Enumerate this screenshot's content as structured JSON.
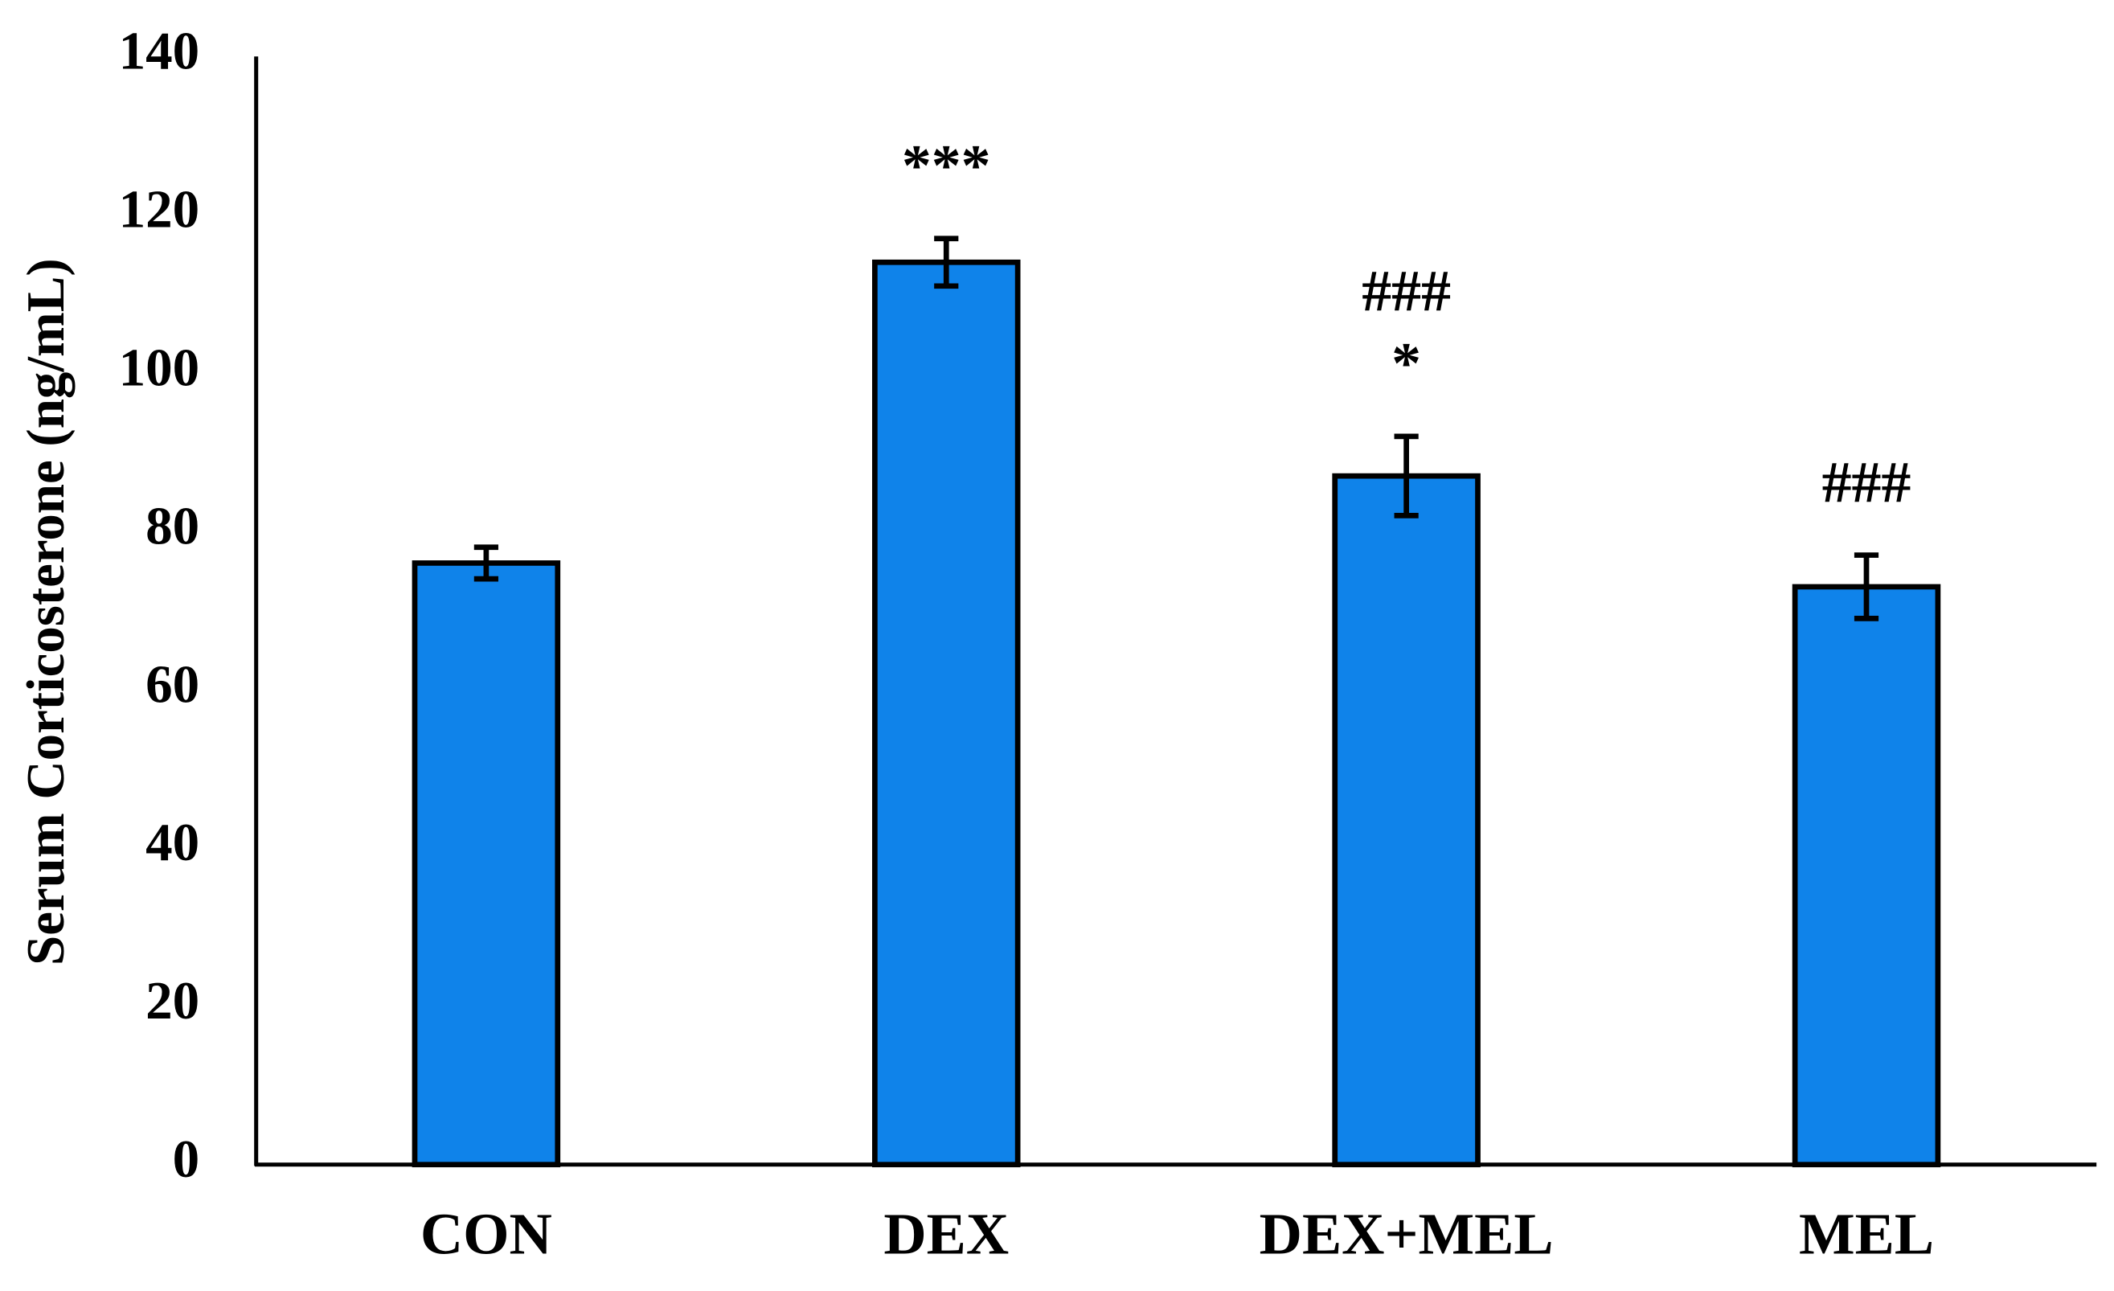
{
  "chart_data": {
    "type": "bar",
    "y_label": "Serum Corticosterone (ng/mL)",
    "categories": [
      "CON",
      "DEX",
      "DEX+MEL",
      "MEL"
    ],
    "values": [
      76,
      114,
      87,
      73
    ],
    "errors": [
      2,
      3,
      5,
      4
    ],
    "color": "#0f83ea",
    "ylim": [
      0,
      140
    ],
    "yticks": [
      0,
      20,
      40,
      60,
      80,
      100,
      120,
      140
    ],
    "grid": false,
    "annotations": [
      {
        "category": "DEX",
        "lines": [
          "***"
        ]
      },
      {
        "category": "DEX+MEL",
        "lines": [
          "###",
          "*"
        ]
      },
      {
        "category": "MEL",
        "lines": [
          "###"
        ]
      }
    ]
  }
}
